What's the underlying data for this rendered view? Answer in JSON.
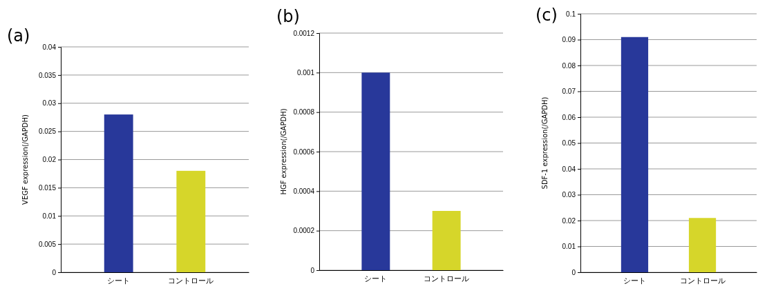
{
  "chart_data": [
    {
      "type": "bar",
      "title": "(a)",
      "ylabel": "VEGF expression(/GAPDH)",
      "categories": [
        "シート",
        "コントロール"
      ],
      "values": [
        0.028,
        0.018
      ],
      "colors": [
        "#28389a",
        "#d6d62a"
      ],
      "ylim": [
        0,
        0.04
      ],
      "yticks": [
        0,
        0.005,
        0.01,
        0.015,
        0.02,
        0.025,
        0.03,
        0.035,
        0.04
      ],
      "grid": "y"
    },
    {
      "type": "bar",
      "title": "(b)",
      "ylabel": "HGF expression(/GAPDH)",
      "categories": [
        "シート",
        "コントロール"
      ],
      "values": [
        0.001,
        0.0003
      ],
      "colors": [
        "#28389a",
        "#d6d62a"
      ],
      "ylim": [
        0,
        0.0012
      ],
      "yticks": [
        0,
        0.0002,
        0.0004,
        0.0006,
        0.0008,
        0.001,
        0.0012
      ],
      "grid": "y"
    },
    {
      "type": "bar",
      "title": "(c)",
      "ylabel": "SDF-1 expression(/GAPDH)",
      "categories": [
        "シート",
        "コントロール"
      ],
      "values": [
        0.091,
        0.021
      ],
      "colors": [
        "#28389a",
        "#d6d62a"
      ],
      "ylim": [
        0,
        0.1
      ],
      "yticks": [
        0,
        0.01,
        0.02,
        0.03,
        0.04,
        0.05,
        0.06,
        0.07,
        0.08,
        0.09,
        0.1
      ],
      "grid": "y"
    }
  ]
}
